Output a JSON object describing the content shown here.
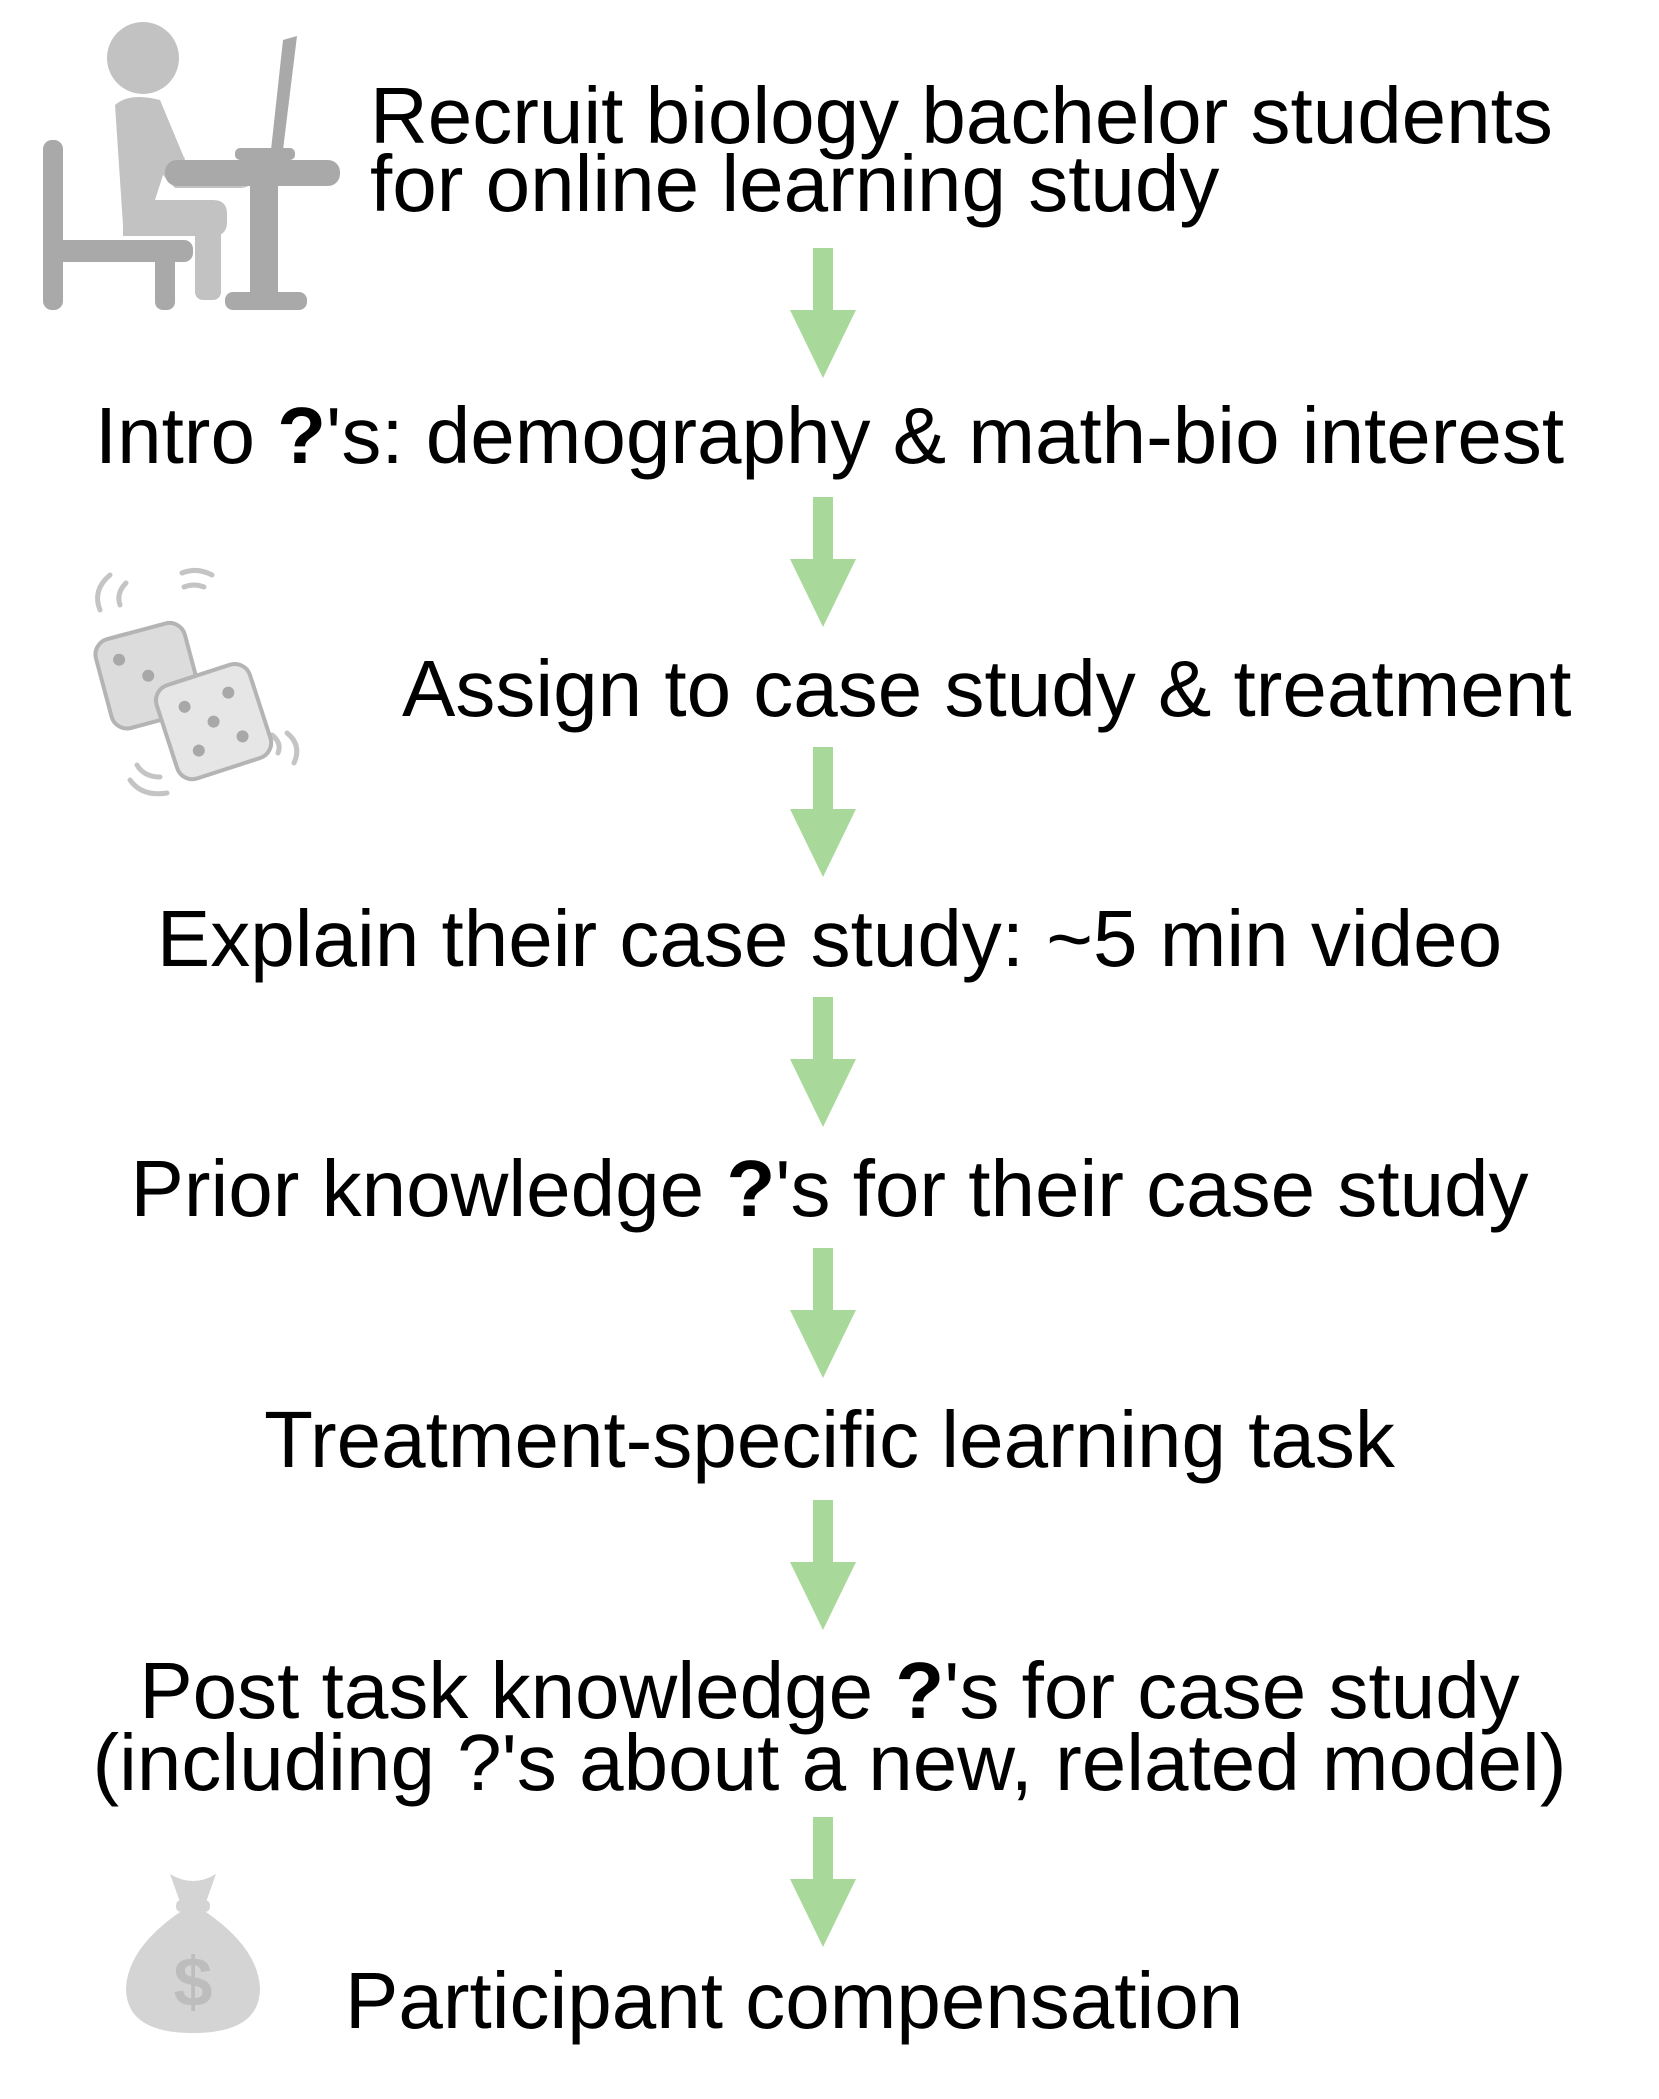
{
  "steps": [
    {
      "id": "recruit",
      "lines": [
        "Recruit biology bachelor students",
        "for online learning study"
      ]
    },
    {
      "id": "intro",
      "before": "Intro ",
      "bold": "?",
      "after": "'s: demography & math-bio interest"
    },
    {
      "id": "assign",
      "text": "Assign to case study & treatment"
    },
    {
      "id": "explain",
      "text": "Explain their case study: ~5 min video"
    },
    {
      "id": "prior",
      "before": "Prior knowledge ",
      "bold": "?",
      "after": "'s for their case study"
    },
    {
      "id": "task",
      "text": "Treatment-specific learning task"
    },
    {
      "id": "post",
      "line1_before": "Post task knowledge ",
      "line1_bold": "?",
      "line1_after": "'s for case study",
      "line2": "(including ?'s about a new, related model)"
    },
    {
      "id": "compensation",
      "text": "Participant compensation"
    }
  ],
  "icons": {
    "computer": "person-at-computer-icon",
    "dice": "rolling-dice-icon",
    "money": "money-bag-icon"
  },
  "colors": {
    "arrow": "#a9d99a",
    "icon": "#b9b9b9",
    "text": "#000000"
  }
}
